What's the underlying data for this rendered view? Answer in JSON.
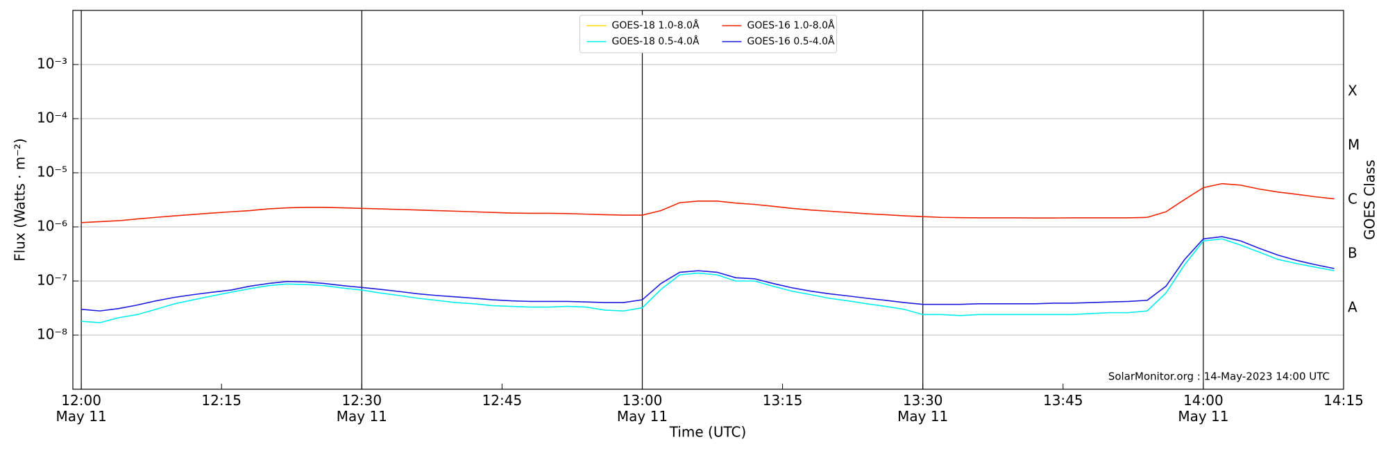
{
  "chart_data": {
    "type": "line",
    "y_label": "Flux (Watts · m⁻²)",
    "x_label": "Time (UTC)",
    "y2_label": "GOES Class",
    "annotation": "SolarMonitor.org : 14-May-2023 14:00 UTC",
    "log_y": true,
    "grid": true,
    "legend": "upper center",
    "xlim": [
      -0.9,
      135
    ],
    "ylim": [
      1e-09,
      0.01
    ],
    "y2lim": [
      1e-09,
      0.01
    ],
    "xticks": [
      {
        "value": 0,
        "label": "12:00\nMay 11"
      },
      {
        "value": 15,
        "label": "12:15"
      },
      {
        "value": 30,
        "label": "12:30\nMay 11"
      },
      {
        "value": 45,
        "label": "12:45"
      },
      {
        "value": 60,
        "label": "13:00\nMay 11"
      },
      {
        "value": 75,
        "label": "13:15"
      },
      {
        "value": 90,
        "label": "13:30\nMay 11"
      },
      {
        "value": 105,
        "label": "13:45"
      },
      {
        "value": 120,
        "label": "14:00\nMay 11"
      },
      {
        "value": 135,
        "label": "14:15"
      }
    ],
    "vlines": [
      0,
      30,
      60,
      90,
      120
    ],
    "yticks": [
      {
        "value": 1e-08,
        "label": "10⁻⁸"
      },
      {
        "value": 1e-07,
        "label": "10⁻⁷"
      },
      {
        "value": 1e-06,
        "label": "10⁻⁶"
      },
      {
        "value": 1e-05,
        "label": "10⁻⁵"
      },
      {
        "value": 0.0001,
        "label": "10⁻⁴"
      },
      {
        "value": 0.001,
        "label": "10⁻³"
      }
    ],
    "y2ticks": [
      {
        "value": 3.162e-08,
        "label": "A"
      },
      {
        "value": 3.162e-07,
        "label": "B"
      },
      {
        "value": 3.162e-06,
        "label": "C"
      },
      {
        "value": 3.162e-05,
        "label": "M"
      },
      {
        "value": 0.0003162,
        "label": "X"
      }
    ],
    "x": [
      0,
      2,
      4,
      6,
      8,
      10,
      12,
      14,
      16,
      18,
      20,
      22,
      24,
      26,
      28,
      30,
      32,
      34,
      36,
      38,
      40,
      42,
      44,
      46,
      48,
      50,
      52,
      54,
      56,
      58,
      60,
      62,
      64,
      66,
      68,
      70,
      72,
      74,
      76,
      78,
      80,
      82,
      84,
      86,
      88,
      90,
      92,
      94,
      96,
      98,
      100,
      102,
      104,
      106,
      108,
      110,
      112,
      114,
      116,
      118,
      120,
      122,
      124,
      126,
      128,
      130,
      132,
      134
    ],
    "series": [
      {
        "name": "GOES-18 1.0-8.0Å",
        "color": "#ffd700",
        "values": [
          null,
          null,
          null,
          null,
          null,
          null,
          null,
          null,
          null,
          null,
          null,
          null,
          null,
          null,
          null,
          null,
          null,
          null,
          null,
          null,
          null,
          null,
          null,
          null,
          null,
          null,
          null,
          null,
          null,
          null,
          null,
          null,
          null,
          null,
          null,
          null,
          null,
          null,
          null,
          null,
          null,
          null,
          null,
          null,
          null,
          null,
          null,
          null,
          null,
          null,
          null,
          null,
          null,
          null,
          null,
          null,
          null,
          null,
          null,
          null,
          null,
          null,
          null,
          null,
          null,
          null,
          null,
          null
        ]
      },
      {
        "name": "GOES-18 0.5-4.0Å",
        "color": "#00eeee",
        "values": [
          1.8e-08,
          1.7e-08,
          2.1e-08,
          2.4e-08,
          3e-08,
          3.8e-08,
          4.5e-08,
          5.3e-08,
          6.2e-08,
          7.2e-08,
          8.2e-08,
          8.8e-08,
          8.6e-08,
          8.2e-08,
          7.4e-08,
          6.8e-08,
          6e-08,
          5.4e-08,
          4.8e-08,
          4.4e-08,
          4e-08,
          3.8e-08,
          3.5e-08,
          3.4e-08,
          3.3e-08,
          3.3e-08,
          3.4e-08,
          3.3e-08,
          2.9e-08,
          2.8e-08,
          3.2e-08,
          7e-08,
          1.3e-07,
          1.4e-07,
          1.3e-07,
          1e-07,
          1e-07,
          8e-08,
          6.5e-08,
          5.6e-08,
          4.8e-08,
          4.3e-08,
          3.8e-08,
          3.4e-08,
          3e-08,
          2.4e-08,
          2.4e-08,
          2.3e-08,
          2.4e-08,
          2.4e-08,
          2.4e-08,
          2.4e-08,
          2.4e-08,
          2.4e-08,
          2.5e-08,
          2.6e-08,
          2.6e-08,
          2.8e-08,
          6e-08,
          2e-07,
          5.5e-07,
          6e-07,
          4.6e-07,
          3.4e-07,
          2.5e-07,
          2.1e-07,
          1.8e-07,
          1.55e-07
        ]
      },
      {
        "name": "GOES-16 1.0-8.0Å",
        "color": "#ee2200",
        "values": [
          1.2e-06,
          1.25e-06,
          1.3e-06,
          1.4e-06,
          1.5e-06,
          1.6e-06,
          1.7e-06,
          1.8e-06,
          1.9e-06,
          2e-06,
          2.15e-06,
          2.25e-06,
          2.3e-06,
          2.3e-06,
          2.25e-06,
          2.2e-06,
          2.15e-06,
          2.1e-06,
          2.05e-06,
          2e-06,
          1.95e-06,
          1.9e-06,
          1.85e-06,
          1.8e-06,
          1.78e-06,
          1.78e-06,
          1.76e-06,
          1.72e-06,
          1.68e-06,
          1.65e-06,
          1.65e-06,
          2e-06,
          2.8e-06,
          3e-06,
          3e-06,
          2.75e-06,
          2.6e-06,
          2.4e-06,
          2.2e-06,
          2.05e-06,
          1.95e-06,
          1.85e-06,
          1.75e-06,
          1.68e-06,
          1.6e-06,
          1.55e-06,
          1.5e-06,
          1.48e-06,
          1.47e-06,
          1.47e-06,
          1.47e-06,
          1.46e-06,
          1.46e-06,
          1.47e-06,
          1.47e-06,
          1.47e-06,
          1.47e-06,
          1.5e-06,
          1.9e-06,
          3.2e-06,
          5.3e-06,
          6.3e-06,
          5.9e-06,
          5e-06,
          4.4e-06,
          4e-06,
          3.6e-06,
          3.3e-06
        ]
      },
      {
        "name": "GOES-16 0.5-4.0Å",
        "color": "#1a1adf",
        "values": [
          3e-08,
          2.8e-08,
          3.1e-08,
          3.6e-08,
          4.3e-08,
          5e-08,
          5.6e-08,
          6.2e-08,
          6.8e-08,
          8e-08,
          9e-08,
          9.8e-08,
          9.6e-08,
          9e-08,
          8.2e-08,
          7.6e-08,
          7e-08,
          6.4e-08,
          5.8e-08,
          5.4e-08,
          5.1e-08,
          4.8e-08,
          4.5e-08,
          4.3e-08,
          4.2e-08,
          4.2e-08,
          4.2e-08,
          4.1e-08,
          4e-08,
          4e-08,
          4.5e-08,
          9e-08,
          1.45e-07,
          1.55e-07,
          1.45e-07,
          1.15e-07,
          1.1e-07,
          9e-08,
          7.5e-08,
          6.5e-08,
          5.8e-08,
          5.3e-08,
          4.8e-08,
          4.4e-08,
          4e-08,
          3.7e-08,
          3.7e-08,
          3.7e-08,
          3.8e-08,
          3.8e-08,
          3.8e-08,
          3.8e-08,
          3.9e-08,
          3.9e-08,
          4e-08,
          4.1e-08,
          4.2e-08,
          4.4e-08,
          8e-08,
          2.5e-07,
          6e-07,
          6.6e-07,
          5.5e-07,
          4e-07,
          3e-07,
          2.4e-07,
          2e-07,
          1.7e-07
        ]
      }
    ]
  }
}
